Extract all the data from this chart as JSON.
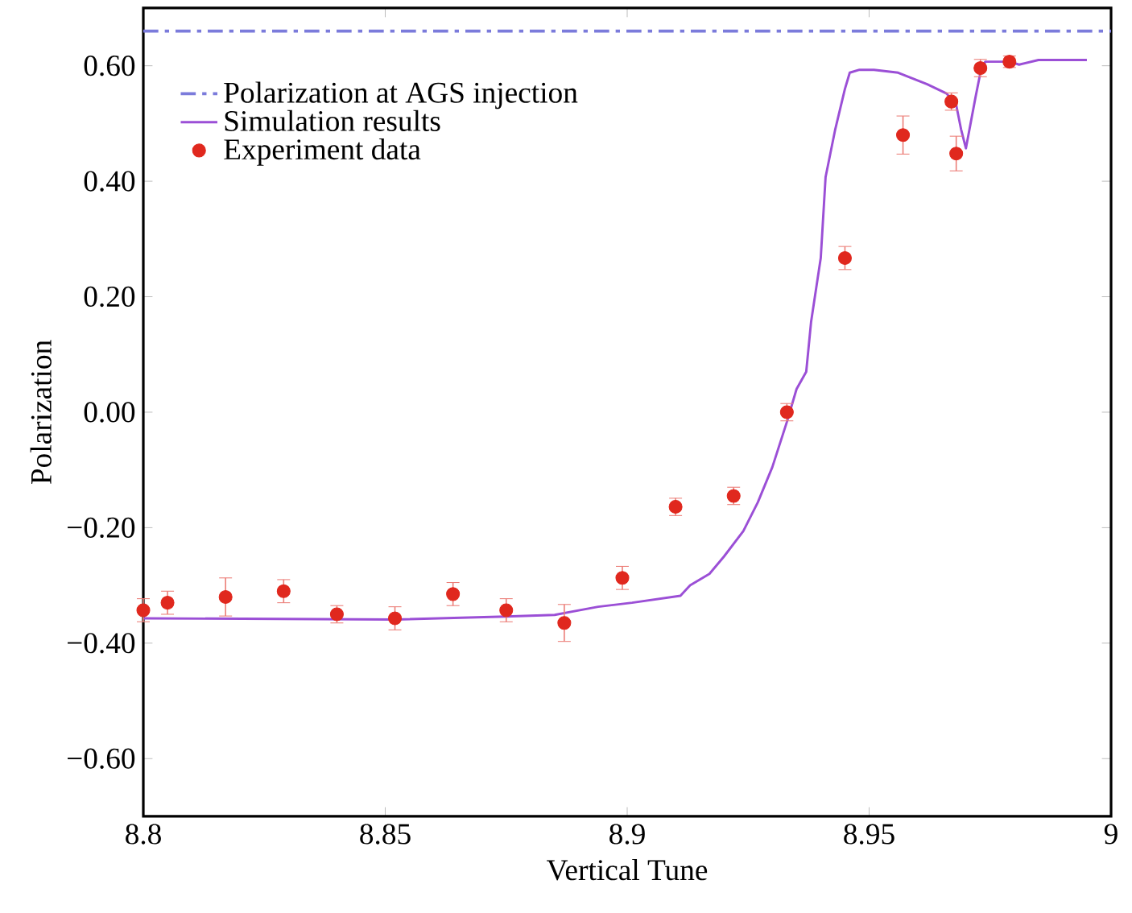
{
  "chart_data": {
    "type": "scatter",
    "xlabel": "Vertical Tune",
    "ylabel": "Polarization",
    "xlim": [
      8.8,
      9.0
    ],
    "xticks": [
      {
        "value": 8.8,
        "label": "8.8"
      },
      8.85,
      {
        "value": 8.9,
        "label": "8.9"
      },
      8.95,
      {
        "value": 9.0,
        "label": "9"
      }
    ],
    "ylim": [
      -0.7,
      0.7
    ],
    "yticks": [
      {
        "value": -0.6,
        "label": "−0.60"
      },
      {
        "value": -0.4,
        "label": "−0.40"
      },
      {
        "value": -0.2,
        "label": "−0.20"
      },
      {
        "value": 0,
        "label": "0.00"
      },
      {
        "value": 0.2,
        "label": "0.20"
      },
      {
        "value": 0.4,
        "label": "0.40"
      },
      {
        "value": 0.6,
        "label": "0.60"
      }
    ],
    "grid": false,
    "legend": "top left",
    "ref_lines": [
      {
        "axis": "y",
        "value": 0.66,
        "label": "Polarization at AGS injection",
        "color": "#7b7bdb",
        "line_style": "dashdot"
      }
    ],
    "series": [
      {
        "name": "Simulation results",
        "type": "line",
        "color": "#9b4fd6",
        "marker": "none",
        "line_style": "solid",
        "x": [
          8.8,
          8.852,
          8.875,
          8.885,
          8.894,
          8.901,
          8.911,
          8.913,
          8.917,
          8.92,
          8.924,
          8.927,
          8.93,
          8.933,
          8.935,
          8.937,
          8.938,
          8.94,
          8.941,
          8.943,
          8.945,
          8.946,
          8.948,
          8.951,
          8.956,
          8.962,
          8.966,
          8.968,
          8.969,
          8.97,
          8.972,
          8.973,
          8.974,
          8.979,
          8.981,
          8.985,
          8.995
        ],
        "values": [
          -0.357,
          -0.359,
          -0.354,
          -0.351,
          -0.337,
          -0.33,
          -0.318,
          -0.3,
          -0.28,
          -0.25,
          -0.206,
          -0.156,
          -0.095,
          -0.017,
          0.04,
          0.07,
          0.156,
          0.267,
          0.407,
          0.49,
          0.56,
          0.588,
          0.593,
          0.593,
          0.588,
          0.568,
          0.552,
          0.532,
          0.49,
          0.457,
          0.546,
          0.588,
          0.607,
          0.607,
          0.602,
          0.61,
          0.61
        ]
      },
      {
        "name": "Experiment data",
        "color": "#e0281e",
        "marker": "circle",
        "x": [
          8.8,
          8.805,
          8.817,
          8.829,
          8.84,
          8.852,
          8.864,
          8.875,
          8.887,
          8.899,
          8.91,
          8.922,
          8.933,
          8.945,
          8.957,
          8.967,
          8.968,
          8.973,
          8.979
        ],
        "values": [
          -0.343,
          -0.33,
          -0.32,
          -0.31,
          -0.35,
          -0.357,
          -0.315,
          -0.343,
          -0.365,
          -0.287,
          -0.164,
          -0.145,
          0.0,
          0.267,
          0.48,
          0.538,
          0.448,
          0.596,
          0.607
        ],
        "errors": [
          0.02,
          0.02,
          0.033,
          0.02,
          0.015,
          0.02,
          0.02,
          0.02,
          0.032,
          0.02,
          0.015,
          0.015,
          0.015,
          0.02,
          0.033,
          0.015,
          0.03,
          0.015,
          0.01
        ]
      }
    ]
  }
}
